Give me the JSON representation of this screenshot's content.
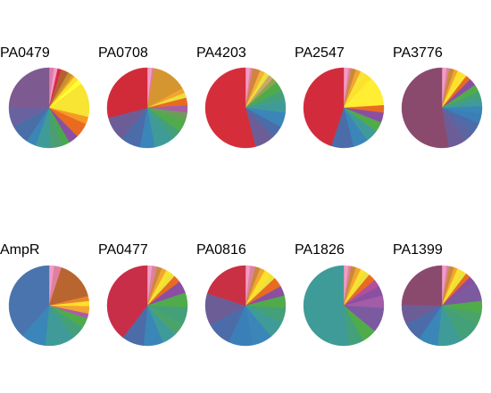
{
  "chart_data": [
    {
      "type": "pie",
      "title": "PA0479",
      "values": [
        2,
        1.5,
        1.5,
        3,
        2,
        1,
        2,
        2,
        14,
        3,
        6,
        4,
        3,
        5,
        6,
        4,
        8,
        8,
        25
      ],
      "colors": [
        "#e27aa8",
        "#f29cc4",
        "#d9284a",
        "#b85f2f",
        "#c6922f",
        "#f0a128",
        "#fde12a",
        "#ffff33",
        "#f7e433",
        "#f59a23",
        "#e96b21",
        "#8a4fa0",
        "#48a94c",
        "#4a9e72",
        "#3f9b98",
        "#3a86b8",
        "#4a6fa8",
        "#6a62a0",
        "#7d5a8f"
      ]
    },
    {
      "type": "pie",
      "title": "PA0708",
      "values": [
        2,
        1,
        14,
        2,
        2,
        3,
        3,
        3,
        5,
        4,
        8,
        6,
        8,
        10,
        29
      ],
      "colors": [
        "#f29cc4",
        "#e0808a",
        "#d5962f",
        "#f4a430",
        "#eae23b",
        "#e96b21",
        "#a75fa3",
        "#6e9b5c",
        "#50ab4b",
        "#43a078",
        "#3f9b98",
        "#3a86b8",
        "#4b6ca8",
        "#6c5d97",
        "#d12b3a"
      ]
    },
    {
      "type": "pie",
      "title": "PA4203",
      "values": [
        2,
        1,
        3,
        2,
        2,
        2,
        2,
        4,
        4,
        5,
        6,
        5,
        8,
        54
      ],
      "colors": [
        "#f29cc4",
        "#e080a0",
        "#d1843a",
        "#f4b13a",
        "#eae23b",
        "#c9a96a",
        "#8ba44d",
        "#4faa4b",
        "#43a078",
        "#3f9b98",
        "#3a86b8",
        "#4b6ca8",
        "#6c5d97",
        "#d52d3a"
      ]
    },
    {
      "type": "pie",
      "title": "PA2547",
      "values": [
        2,
        1,
        2,
        2,
        2,
        3,
        12,
        3,
        4,
        4,
        5,
        6,
        9,
        45
      ],
      "colors": [
        "#f29cc4",
        "#e080a0",
        "#c88a3a",
        "#f4a430",
        "#f9e43a",
        "#fde12a",
        "#ffee33",
        "#e96b21",
        "#8a4fa0",
        "#50ab4b",
        "#3f9b98",
        "#3a86b8",
        "#4b6ca8",
        "#d22c3c"
      ]
    },
    {
      "type": "pie",
      "title": "PA3776",
      "values": [
        2,
        1,
        2,
        1.5,
        2,
        2,
        2,
        3,
        3,
        3,
        3,
        3,
        4,
        4,
        5,
        7,
        53
      ],
      "colors": [
        "#f29cc4",
        "#e080a0",
        "#c88a3a",
        "#f4a430",
        "#fde12a",
        "#f7e433",
        "#e96b21",
        "#8a4fa0",
        "#50ab4b",
        "#43a078",
        "#3f9b98",
        "#3a86b8",
        "#3a7fb8",
        "#4b6ca8",
        "#5a65a2",
        "#6c5d97",
        "#8a4a6e"
      ]
    },
    {
      "type": "pie",
      "title": "AmpR",
      "values": [
        2,
        3,
        16,
        2,
        2,
        3,
        2,
        4,
        5,
        12,
        10,
        38
      ],
      "colors": [
        "#f29cc4",
        "#e080a0",
        "#b9652f",
        "#e9862a",
        "#fde12a",
        "#f4a430",
        "#a75fa3",
        "#50ab4b",
        "#43a078",
        "#3f9b98",
        "#3a86b8",
        "#4a74ad"
      ]
    },
    {
      "type": "pie",
      "title": "PA0477",
      "values": [
        2,
        2,
        2,
        2,
        2,
        2,
        3,
        5,
        6,
        7,
        5,
        6,
        8,
        9,
        40
      ],
      "colors": [
        "#f29cc4",
        "#e080a0",
        "#c88a3a",
        "#f4a430",
        "#fde12a",
        "#eae23b",
        "#e96b21",
        "#8a4fa0",
        "#50ab4b",
        "#43a078",
        "#4aa46a",
        "#3f9b98",
        "#3a86b8",
        "#4b6ca8",
        "#c82e48"
      ]
    },
    {
      "type": "pie",
      "title": "PA0816",
      "values": [
        2,
        2,
        2,
        2,
        3,
        2,
        4,
        4,
        5,
        6,
        7,
        8,
        10,
        10,
        13,
        20
      ],
      "colors": [
        "#f29cc4",
        "#e080a0",
        "#c88a3a",
        "#f4a430",
        "#fde12a",
        "#eae23b",
        "#e96b21",
        "#8a4fa0",
        "#50ab4b",
        "#43a078",
        "#3f9b98",
        "#3a86b8",
        "#3a7fb8",
        "#4b6ca8",
        "#6c5d97",
        "#c93043"
      ]
    },
    {
      "type": "pie",
      "title": "PA1826",
      "values": [
        2,
        1,
        2,
        2,
        2,
        2,
        3,
        3,
        4,
        5,
        10,
        6,
        6,
        52
      ],
      "colors": [
        "#f29cc4",
        "#e080a0",
        "#c88a3a",
        "#f4a430",
        "#fde12a",
        "#eae23b",
        "#e96b21",
        "#b04f9e",
        "#8a4fa0",
        "#a35ca8",
        "#7b5aa0",
        "#50ab4b",
        "#43a078",
        "#3f9b98"
      ]
    },
    {
      "type": "pie",
      "title": "PA1399",
      "values": [
        2,
        1,
        2,
        1.5,
        2,
        2,
        2,
        3,
        8,
        5,
        5,
        9,
        10,
        8,
        8,
        8,
        25
      ],
      "colors": [
        "#f29cc4",
        "#e080a0",
        "#c88a3a",
        "#f4a430",
        "#fde12a",
        "#eae23b",
        "#e96b21",
        "#8a4fa0",
        "#7b5aa0",
        "#50ab4b",
        "#4aa46a",
        "#43a078",
        "#3f9b98",
        "#3a86b8",
        "#4b6ca8",
        "#6c5d97",
        "#8a4a6e"
      ]
    }
  ]
}
